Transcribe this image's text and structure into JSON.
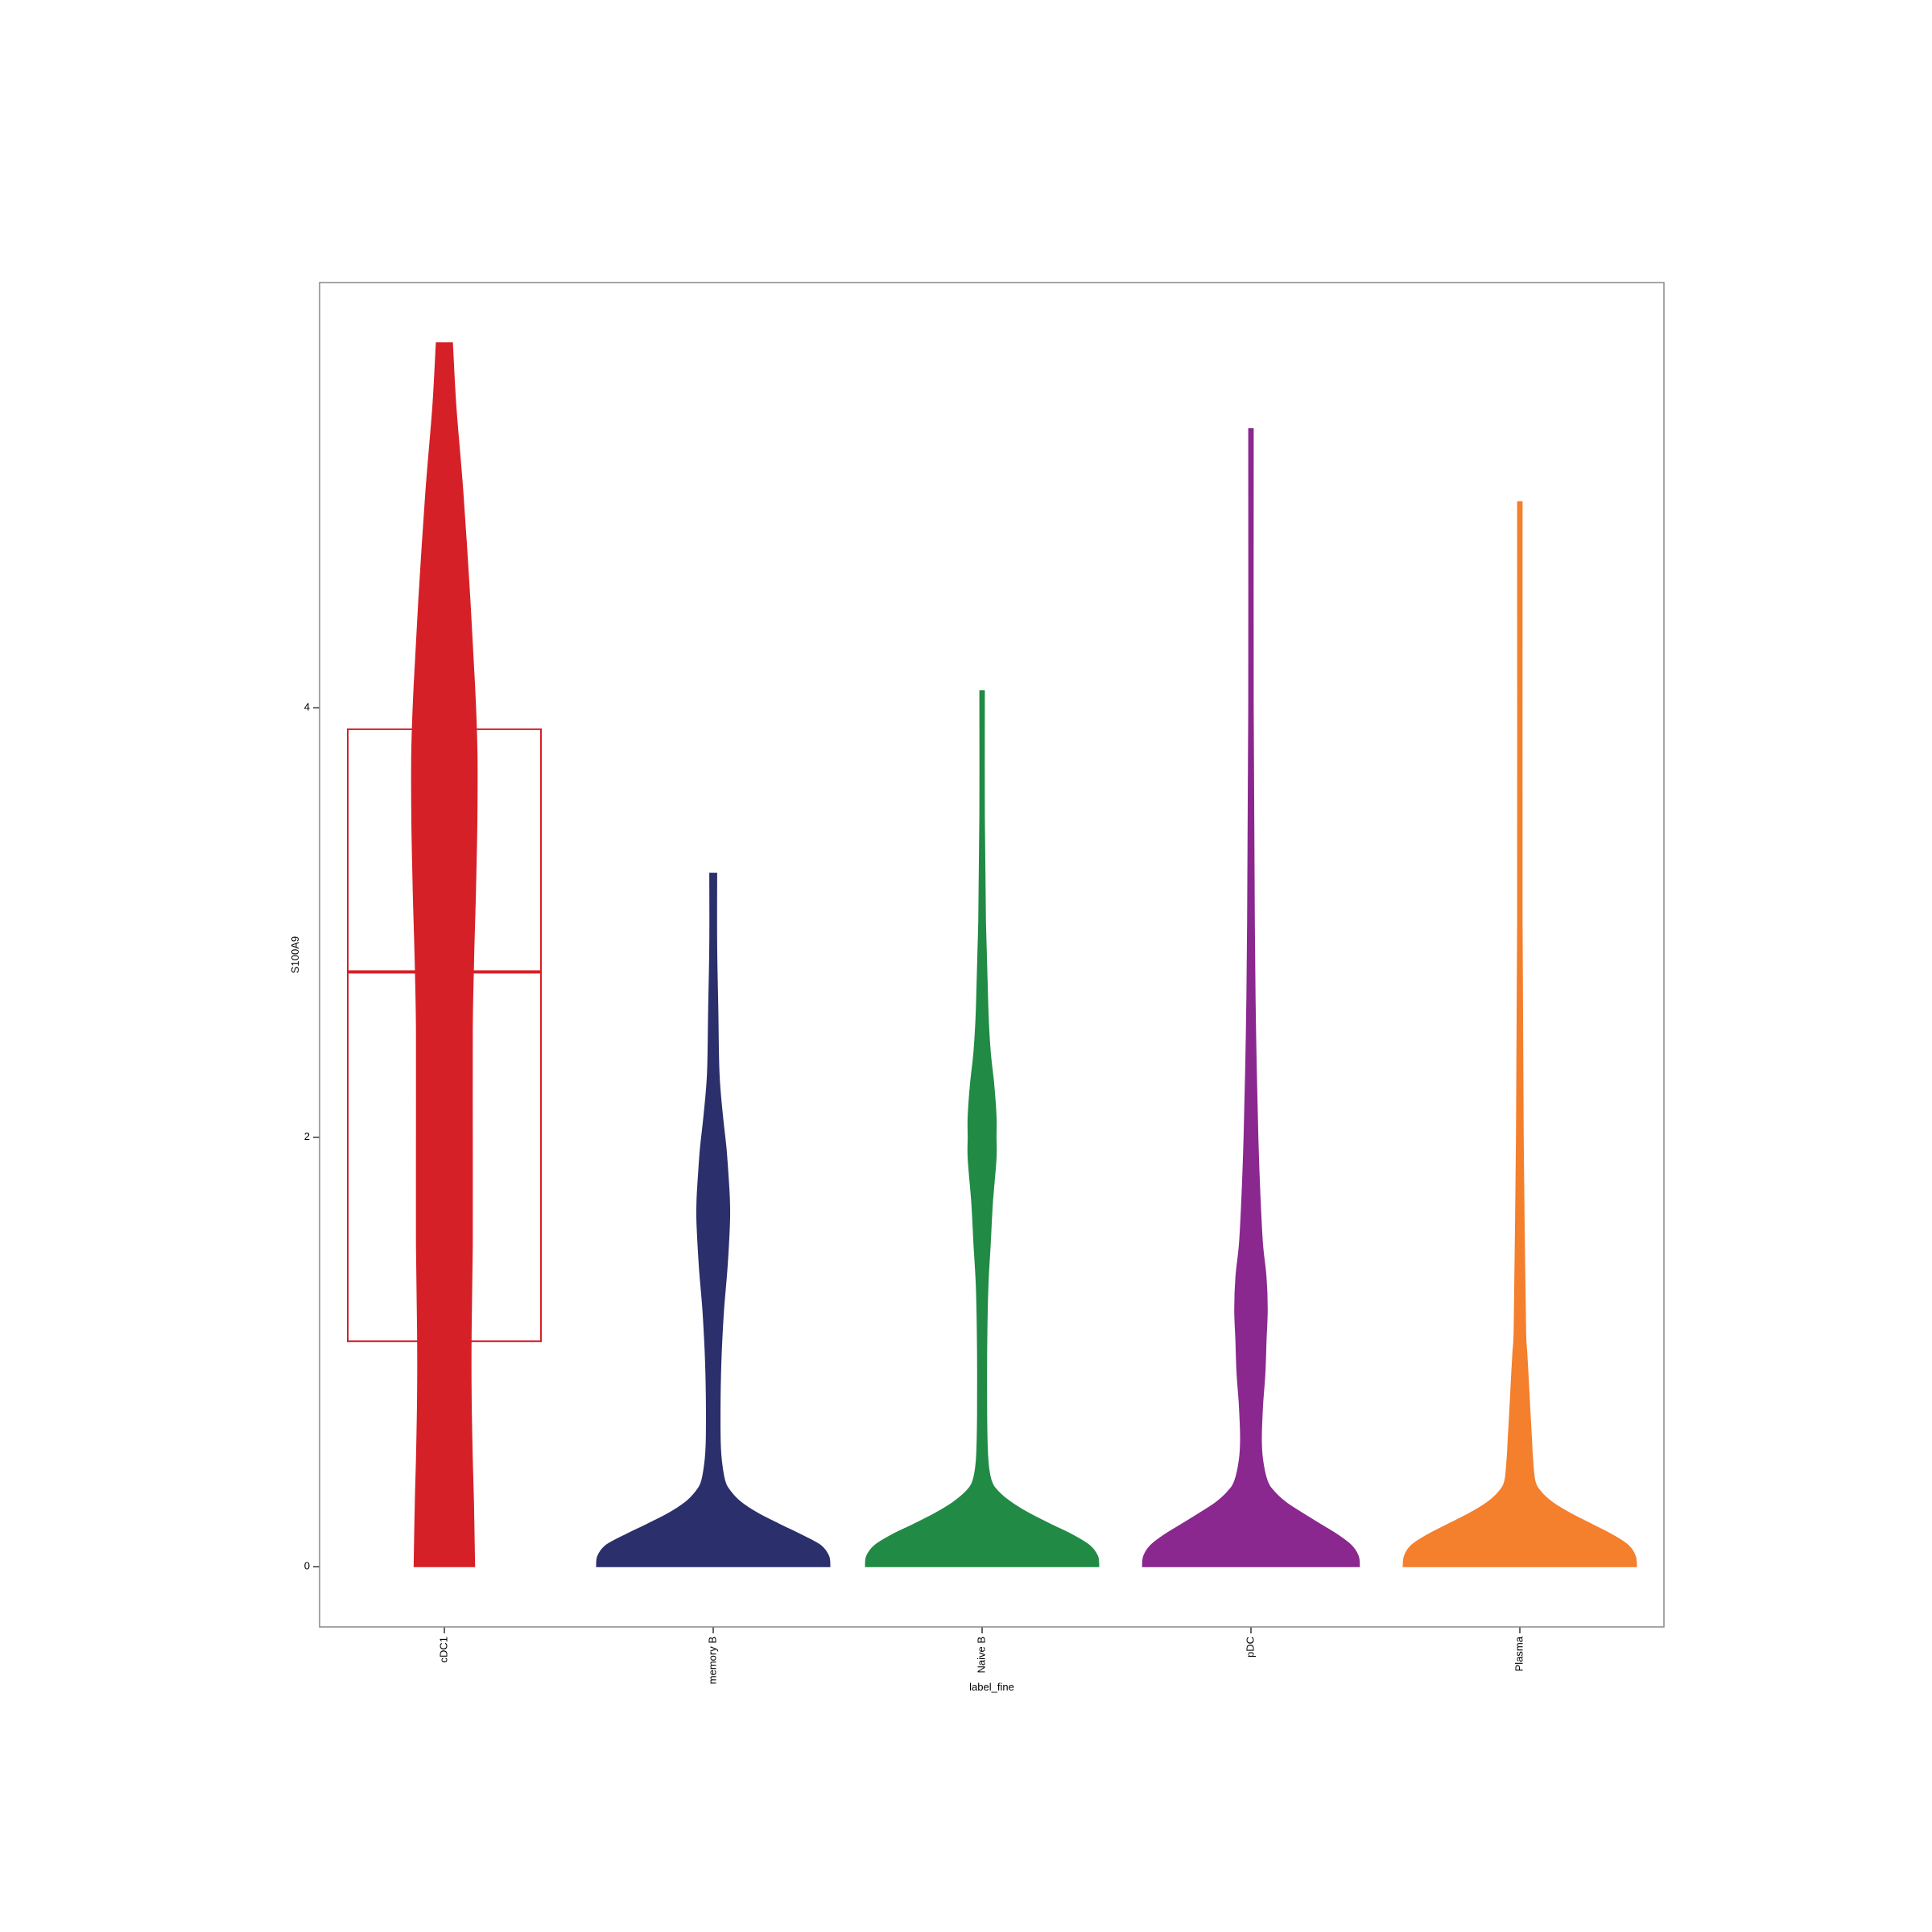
{
  "chart_data": {
    "type": "violin",
    "xlabel": "label_fine",
    "ylabel": "S100A9",
    "ylim": [
      -0.28,
      5.98
    ],
    "yticks": [
      0,
      2,
      4
    ],
    "ytick_labels": [
      "0",
      "2",
      "4"
    ],
    "grid": false,
    "legend": "none",
    "categories": [
      "cDC1",
      "memory B",
      "Naive B",
      "pDC",
      "Plasma"
    ],
    "colors": [
      "#d62027",
      "#2b2f6b",
      "#218a45",
      "#8a288f",
      "#f47f2c"
    ],
    "violins": [
      {
        "category": "cDC1",
        "color": "#d62027",
        "max": 5.7,
        "profile": [
          [
            0,
            0.26
          ],
          [
            0.3,
            0.25
          ],
          [
            0.5,
            0.24
          ],
          [
            0.8,
            0.23
          ],
          [
            1.1,
            0.23
          ],
          [
            1.5,
            0.24
          ],
          [
            2.0,
            0.24
          ],
          [
            2.5,
            0.24
          ],
          [
            2.8,
            0.25
          ],
          [
            3.0,
            0.26
          ],
          [
            3.2,
            0.27
          ],
          [
            3.5,
            0.28
          ],
          [
            3.8,
            0.28
          ],
          [
            4.1,
            0.26
          ],
          [
            4.5,
            0.22
          ],
          [
            5.0,
            0.16
          ],
          [
            5.4,
            0.1
          ],
          [
            5.7,
            0.07
          ]
        ],
        "box": {
          "q1": 1.05,
          "median": 2.77,
          "q3": 3.9
        }
      },
      {
        "category": "memory B",
        "color": "#2b2f6b",
        "max": 3.23,
        "profile": [
          [
            0,
            1.0
          ],
          [
            0.05,
            0.99
          ],
          [
            0.1,
            0.92
          ],
          [
            0.15,
            0.75
          ],
          [
            0.2,
            0.56
          ],
          [
            0.25,
            0.38
          ],
          [
            0.3,
            0.24
          ],
          [
            0.35,
            0.15
          ],
          [
            0.4,
            0.1
          ],
          [
            0.5,
            0.07
          ],
          [
            0.6,
            0.06
          ],
          [
            0.8,
            0.06
          ],
          [
            1.0,
            0.07
          ],
          [
            1.2,
            0.09
          ],
          [
            1.4,
            0.12
          ],
          [
            1.6,
            0.14
          ],
          [
            1.7,
            0.14
          ],
          [
            1.8,
            0.13
          ],
          [
            1.95,
            0.11
          ],
          [
            2.1,
            0.08
          ],
          [
            2.3,
            0.05
          ],
          [
            2.6,
            0.04
          ],
          [
            2.9,
            0.03
          ],
          [
            3.23,
            0.03
          ]
        ]
      },
      {
        "category": "Naive B",
        "color": "#218a45",
        "max": 4.08,
        "profile": [
          [
            0,
            1.0
          ],
          [
            0.05,
            0.99
          ],
          [
            0.1,
            0.92
          ],
          [
            0.15,
            0.77
          ],
          [
            0.2,
            0.58
          ],
          [
            0.25,
            0.4
          ],
          [
            0.3,
            0.25
          ],
          [
            0.35,
            0.14
          ],
          [
            0.4,
            0.08
          ],
          [
            0.5,
            0.05
          ],
          [
            0.7,
            0.04
          ],
          [
            1.0,
            0.04
          ],
          [
            1.3,
            0.05
          ],
          [
            1.5,
            0.07
          ],
          [
            1.7,
            0.09
          ],
          [
            1.9,
            0.12
          ],
          [
            2.0,
            0.12
          ],
          [
            2.1,
            0.12
          ],
          [
            2.25,
            0.1
          ],
          [
            2.4,
            0.07
          ],
          [
            2.6,
            0.05
          ],
          [
            3.0,
            0.03
          ],
          [
            3.5,
            0.02
          ],
          [
            4.08,
            0.02
          ]
        ]
      },
      {
        "category": "pDC",
        "color": "#8a288f",
        "max": 5.3,
        "profile": [
          [
            0,
            0.93
          ],
          [
            0.05,
            0.92
          ],
          [
            0.1,
            0.86
          ],
          [
            0.15,
            0.74
          ],
          [
            0.2,
            0.59
          ],
          [
            0.25,
            0.44
          ],
          [
            0.3,
            0.3
          ],
          [
            0.35,
            0.2
          ],
          [
            0.4,
            0.14
          ],
          [
            0.5,
            0.1
          ],
          [
            0.6,
            0.09
          ],
          [
            0.75,
            0.1
          ],
          [
            0.9,
            0.12
          ],
          [
            1.05,
            0.13
          ],
          [
            1.2,
            0.14
          ],
          [
            1.35,
            0.13
          ],
          [
            1.5,
            0.1
          ],
          [
            1.7,
            0.08
          ],
          [
            2.0,
            0.06
          ],
          [
            2.5,
            0.04
          ],
          [
            3.0,
            0.03
          ],
          [
            4.0,
            0.02
          ],
          [
            5.3,
            0.02
          ]
        ]
      },
      {
        "category": "Plasma",
        "color": "#f47f2c",
        "max": 4.96,
        "profile": [
          [
            0,
            1.0
          ],
          [
            0.05,
            0.99
          ],
          [
            0.1,
            0.93
          ],
          [
            0.15,
            0.79
          ],
          [
            0.2,
            0.61
          ],
          [
            0.25,
            0.43
          ],
          [
            0.3,
            0.28
          ],
          [
            0.35,
            0.18
          ],
          [
            0.4,
            0.13
          ],
          [
            0.5,
            0.11
          ],
          [
            0.6,
            0.1
          ],
          [
            0.7,
            0.09
          ],
          [
            0.8,
            0.08
          ],
          [
            0.9,
            0.07
          ],
          [
            1.0,
            0.06
          ],
          [
            1.1,
            0.05
          ],
          [
            1.5,
            0.04
          ],
          [
            2.0,
            0.03
          ],
          [
            3.0,
            0.02
          ],
          [
            4.96,
            0.02
          ]
        ]
      }
    ]
  }
}
